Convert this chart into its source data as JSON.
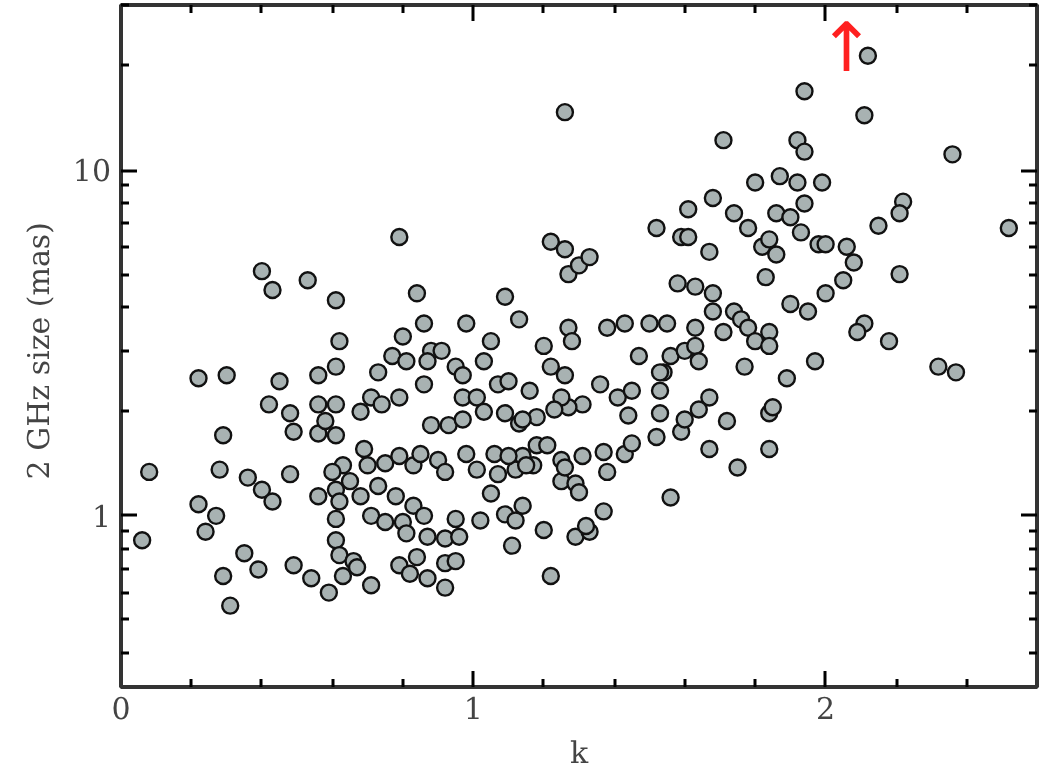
{
  "chart_data": {
    "type": "scatter",
    "xlabel": "k",
    "ylabel": "2 GHz size  (mas)",
    "log": "y",
    "grid": false,
    "marker": "circle",
    "xlim": [
      0,
      2.6
    ],
    "ylim": [
      0.32,
      30
    ],
    "xticks": [
      0,
      {
        "value": 0.2,
        "label": null
      },
      {
        "value": 0.4,
        "label": null
      },
      {
        "value": 0.6,
        "label": null
      },
      {
        "value": 0.8,
        "label": null
      },
      1,
      {
        "value": 1.2,
        "label": null
      },
      {
        "value": 1.4,
        "label": null
      },
      {
        "value": 1.6,
        "label": null
      },
      {
        "value": 1.8,
        "label": null
      },
      2,
      {
        "value": 2.2,
        "label": null
      },
      {
        "value": 2.4,
        "label": null
      }
    ],
    "yticks": [
      {
        "value": 0.4,
        "label": null
      },
      {
        "value": 0.5,
        "label": null
      },
      {
        "value": 0.6,
        "label": null
      },
      {
        "value": 0.7,
        "label": null
      },
      {
        "value": 0.8,
        "label": null
      },
      {
        "value": 0.9,
        "label": null
      },
      1,
      {
        "value": 2,
        "label": null
      },
      {
        "value": 3,
        "label": null
      },
      {
        "value": 4,
        "label": null
      },
      {
        "value": 5,
        "label": null
      },
      {
        "value": 6,
        "label": null
      },
      {
        "value": 7,
        "label": null
      },
      {
        "value": 8,
        "label": null
      },
      {
        "value": 9,
        "label": null
      },
      10,
      {
        "value": 20,
        "label": null
      },
      {
        "value": 30,
        "label": null
      }
    ],
    "annotations": [
      "↑"
    ],
    "series": [
      {
        "color": "#a8b2b2",
        "x": [
          2.12,
          1.94,
          2.11,
          1.26,
          2.36,
          1.71,
          1.92,
          1.94,
          1.8,
          1.87,
          1.92,
          1.99,
          2.22,
          2.21,
          2.15,
          2.52,
          1.68,
          1.61,
          1.74,
          1.86,
          1.9,
          1.94,
          1.93,
          1.52,
          1.59,
          1.61,
          1.67,
          1.78,
          1.82,
          1.84,
          1.86,
          1.98,
          2.0,
          2.06,
          2.08,
          2.21,
          2.05,
          2.0,
          1.9,
          1.95,
          1.83,
          1.22,
          1.26,
          1.27,
          1.3,
          1.33,
          1.58,
          1.63,
          1.68,
          1.68,
          1.74,
          1.76,
          1.78,
          1.84,
          1.8,
          1.84,
          1.77,
          1.71,
          1.63,
          1.55,
          1.5,
          1.43,
          1.38,
          1.27,
          1.28,
          1.13,
          1.09,
          1.2,
          1.22,
          1.47,
          1.54,
          1.56,
          1.6,
          1.63,
          1.64,
          1.97,
          1.89,
          2.11,
          2.09,
          2.18,
          2.32,
          2.37,
          0.4,
          0.43,
          0.53,
          0.61,
          0.62,
          0.61,
          0.79,
          0.84,
          0.8,
          0.86,
          0.98,
          1.05,
          1.03,
          0.88,
          0.91,
          0.87,
          0.77,
          0.81,
          0.95,
          0.97,
          0.86,
          0.73,
          0.56,
          0.45,
          0.3,
          0.22,
          1.07,
          1.1,
          0.29,
          0.28,
          0.08,
          0.42,
          0.48,
          0.49,
          0.56,
          0.61,
          0.56,
          0.61,
          0.58,
          0.68,
          0.71,
          0.74,
          0.79,
          0.88,
          0.93,
          0.97,
          0.97,
          1.01,
          1.03,
          1.09,
          1.13,
          1.16,
          0.69,
          0.63,
          0.6,
          0.65,
          0.7,
          0.75,
          0.79,
          0.83,
          0.85,
          0.9,
          0.92,
          0.98,
          1.01,
          1.06,
          1.07,
          1.12,
          1.14,
          1.17,
          0.48,
          0.36,
          0.4,
          0.43,
          0.56,
          0.61,
          0.62,
          0.68,
          0.73,
          0.78,
          0.83,
          0.71,
          0.75,
          0.61,
          0.8,
          0.86,
          0.95,
          1.02,
          1.05,
          1.09,
          1.14,
          0.22,
          0.27,
          0.24,
          0.06,
          0.61,
          0.81,
          0.87,
          0.92,
          0.96,
          1.11,
          0.35,
          0.29,
          0.39,
          0.49,
          0.54,
          0.59,
          0.62,
          0.66,
          0.63,
          0.67,
          0.71,
          0.79,
          0.82,
          0.84,
          0.87,
          0.92,
          0.92,
          0.95,
          0.31,
          1.56,
          1.22,
          1.2,
          1.29,
          1.33,
          1.32,
          1.37,
          1.12,
          1.25,
          1.29,
          1.3,
          1.38,
          1.43,
          1.45,
          1.52,
          1.59,
          1.67,
          1.75,
          1.84,
          1.72,
          1.84,
          1.85,
          1.53,
          1.67,
          1.64,
          1.6,
          1.53,
          1.44,
          1.41,
          1.36,
          1.31,
          1.27,
          1.25,
          1.23,
          1.18,
          1.14,
          1.18,
          1.21,
          1.15,
          1.1,
          1.25,
          1.31,
          1.37,
          1.26,
          1.53,
          1.45,
          1.26
        ],
        "values": [
          21.4,
          16.9,
          14.4,
          14.7,
          11.1,
          12.2,
          12.2,
          11.3,
          9.2,
          9.6,
          9.2,
          9.2,
          8.1,
          7.5,
          6.9,
          6.8,
          8.3,
          7.7,
          7.5,
          7.5,
          7.3,
          8.0,
          6.6,
          6.8,
          6.4,
          6.4,
          5.8,
          6.8,
          6.0,
          6.3,
          5.7,
          6.1,
          6.1,
          6.0,
          5.4,
          5.0,
          4.8,
          4.4,
          4.1,
          3.9,
          4.9,
          6.2,
          5.9,
          5.0,
          5.3,
          5.6,
          4.7,
          4.6,
          4.4,
          3.9,
          3.9,
          3.7,
          3.5,
          3.4,
          3.2,
          3.1,
          2.7,
          3.4,
          3.5,
          3.6,
          3.6,
          3.6,
          3.5,
          3.5,
          3.2,
          3.7,
          4.3,
          3.1,
          2.7,
          2.9,
          2.6,
          2.9,
          3.0,
          3.1,
          2.8,
          2.8,
          2.5,
          3.6,
          3.4,
          3.2,
          2.7,
          2.6,
          5.1,
          4.5,
          4.8,
          4.2,
          3.2,
          2.7,
          6.4,
          4.4,
          3.3,
          3.6,
          3.6,
          3.2,
          2.8,
          3.0,
          3.0,
          2.8,
          2.9,
          2.8,
          2.7,
          2.55,
          2.4,
          2.6,
          2.55,
          2.45,
          2.55,
          2.5,
          2.4,
          2.45,
          1.71,
          1.36,
          1.34,
          2.1,
          1.98,
          1.75,
          1.73,
          1.71,
          2.1,
          2.1,
          1.88,
          2.0,
          2.2,
          2.1,
          2.2,
          1.83,
          1.83,
          2.2,
          1.9,
          2.2,
          2.0,
          1.98,
          1.85,
          2.3,
          1.56,
          1.4,
          1.34,
          1.26,
          1.4,
          1.42,
          1.49,
          1.4,
          1.51,
          1.45,
          1.34,
          1.51,
          1.36,
          1.51,
          1.32,
          1.36,
          1.49,
          1.4,
          1.32,
          1.29,
          1.19,
          1.1,
          1.14,
          1.19,
          1.1,
          1.14,
          1.22,
          1.14,
          1.07,
          1.0,
          0.96,
          0.98,
          0.96,
          1.0,
          0.98,
          0.97,
          1.16,
          1.01,
          1.07,
          1.08,
          1.0,
          0.9,
          0.85,
          0.85,
          0.89,
          0.87,
          0.86,
          0.87,
          0.82,
          0.78,
          0.67,
          0.7,
          0.72,
          0.66,
          0.6,
          0.77,
          0.74,
          0.67,
          0.71,
          0.63,
          0.72,
          0.68,
          0.76,
          0.66,
          0.62,
          0.73,
          0.74,
          0.55,
          1.13,
          0.67,
          0.91,
          0.87,
          0.9,
          0.935,
          1.03,
          0.97,
          1.26,
          1.24,
          1.17,
          1.34,
          1.51,
          1.62,
          1.69,
          1.75,
          1.56,
          1.38,
          1.56,
          1.88,
          1.98,
          2.06,
          2.6,
          2.2,
          2.03,
          1.9,
          1.98,
          1.95,
          2.2,
          2.4,
          2.1,
          2.06,
          2.2,
          2.03,
          1.93,
          1.9,
          1.6,
          1.6,
          1.4,
          1.49,
          1.45,
          1.49,
          1.53,
          1.38,
          2.3,
          2.3,
          2.55
        ]
      }
    ]
  }
}
